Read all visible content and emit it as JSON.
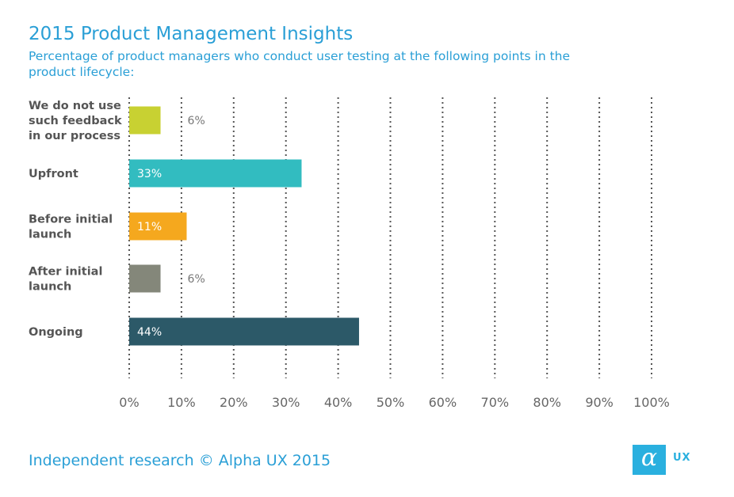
{
  "header": {
    "title": "2015 Product Management  Insights",
    "subtitle": "Percentage of product managers who conduct user testing at the following points in the product lifecycle:"
  },
  "chart_data": {
    "type": "bar",
    "orientation": "horizontal",
    "categories": [
      [
        "We do not use",
        "such feedback",
        "in our process"
      ],
      [
        "Upfront"
      ],
      [
        "Before initial",
        "launch"
      ],
      [
        "After initial",
        "launch"
      ],
      [
        "Ongoing"
      ]
    ],
    "values": [
      6,
      33,
      11,
      6,
      44
    ],
    "value_labels": [
      "6%",
      "33%",
      "11%",
      "6%",
      "44%"
    ],
    "label_inside": [
      false,
      true,
      true,
      false,
      true
    ],
    "colors": [
      "#c8d132",
      "#32bcc0",
      "#f5a81e",
      "#84877a",
      "#2c5968"
    ],
    "xlim": [
      0,
      100
    ],
    "x_ticks": [
      "0%",
      "10%",
      "20%",
      "30%",
      "40%",
      "50%",
      "60%",
      "70%",
      "80%",
      "90%",
      "100%"
    ],
    "grid": "vertical-dotted",
    "xlabel": "",
    "ylabel": ""
  },
  "footer": {
    "credit": "Independent research © Alpha UX 2015",
    "logo_glyph": "α",
    "logo_text": "UX",
    "logo_color": "#2ab0df"
  }
}
